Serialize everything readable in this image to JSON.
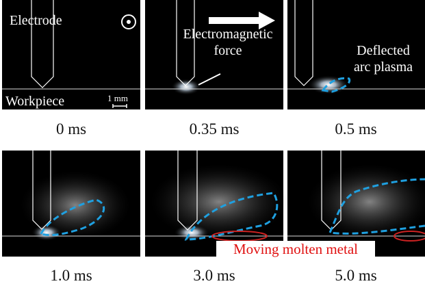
{
  "panels": [
    {
      "caption": "0 ms"
    },
    {
      "caption": "0.35 ms"
    },
    {
      "caption": "0.5 ms"
    },
    {
      "caption": "1.0 ms"
    },
    {
      "caption": "3.0 ms"
    },
    {
      "caption": "5.0 ms"
    }
  ],
  "annotations": {
    "electrode": "Electrode",
    "workpiece": "Workpiece",
    "scale": "1 mm",
    "force": [
      "Electromagnetic",
      "force"
    ],
    "plasma": [
      "Deflected",
      "arc plasma"
    ],
    "molten": "Moving molten metal"
  }
}
